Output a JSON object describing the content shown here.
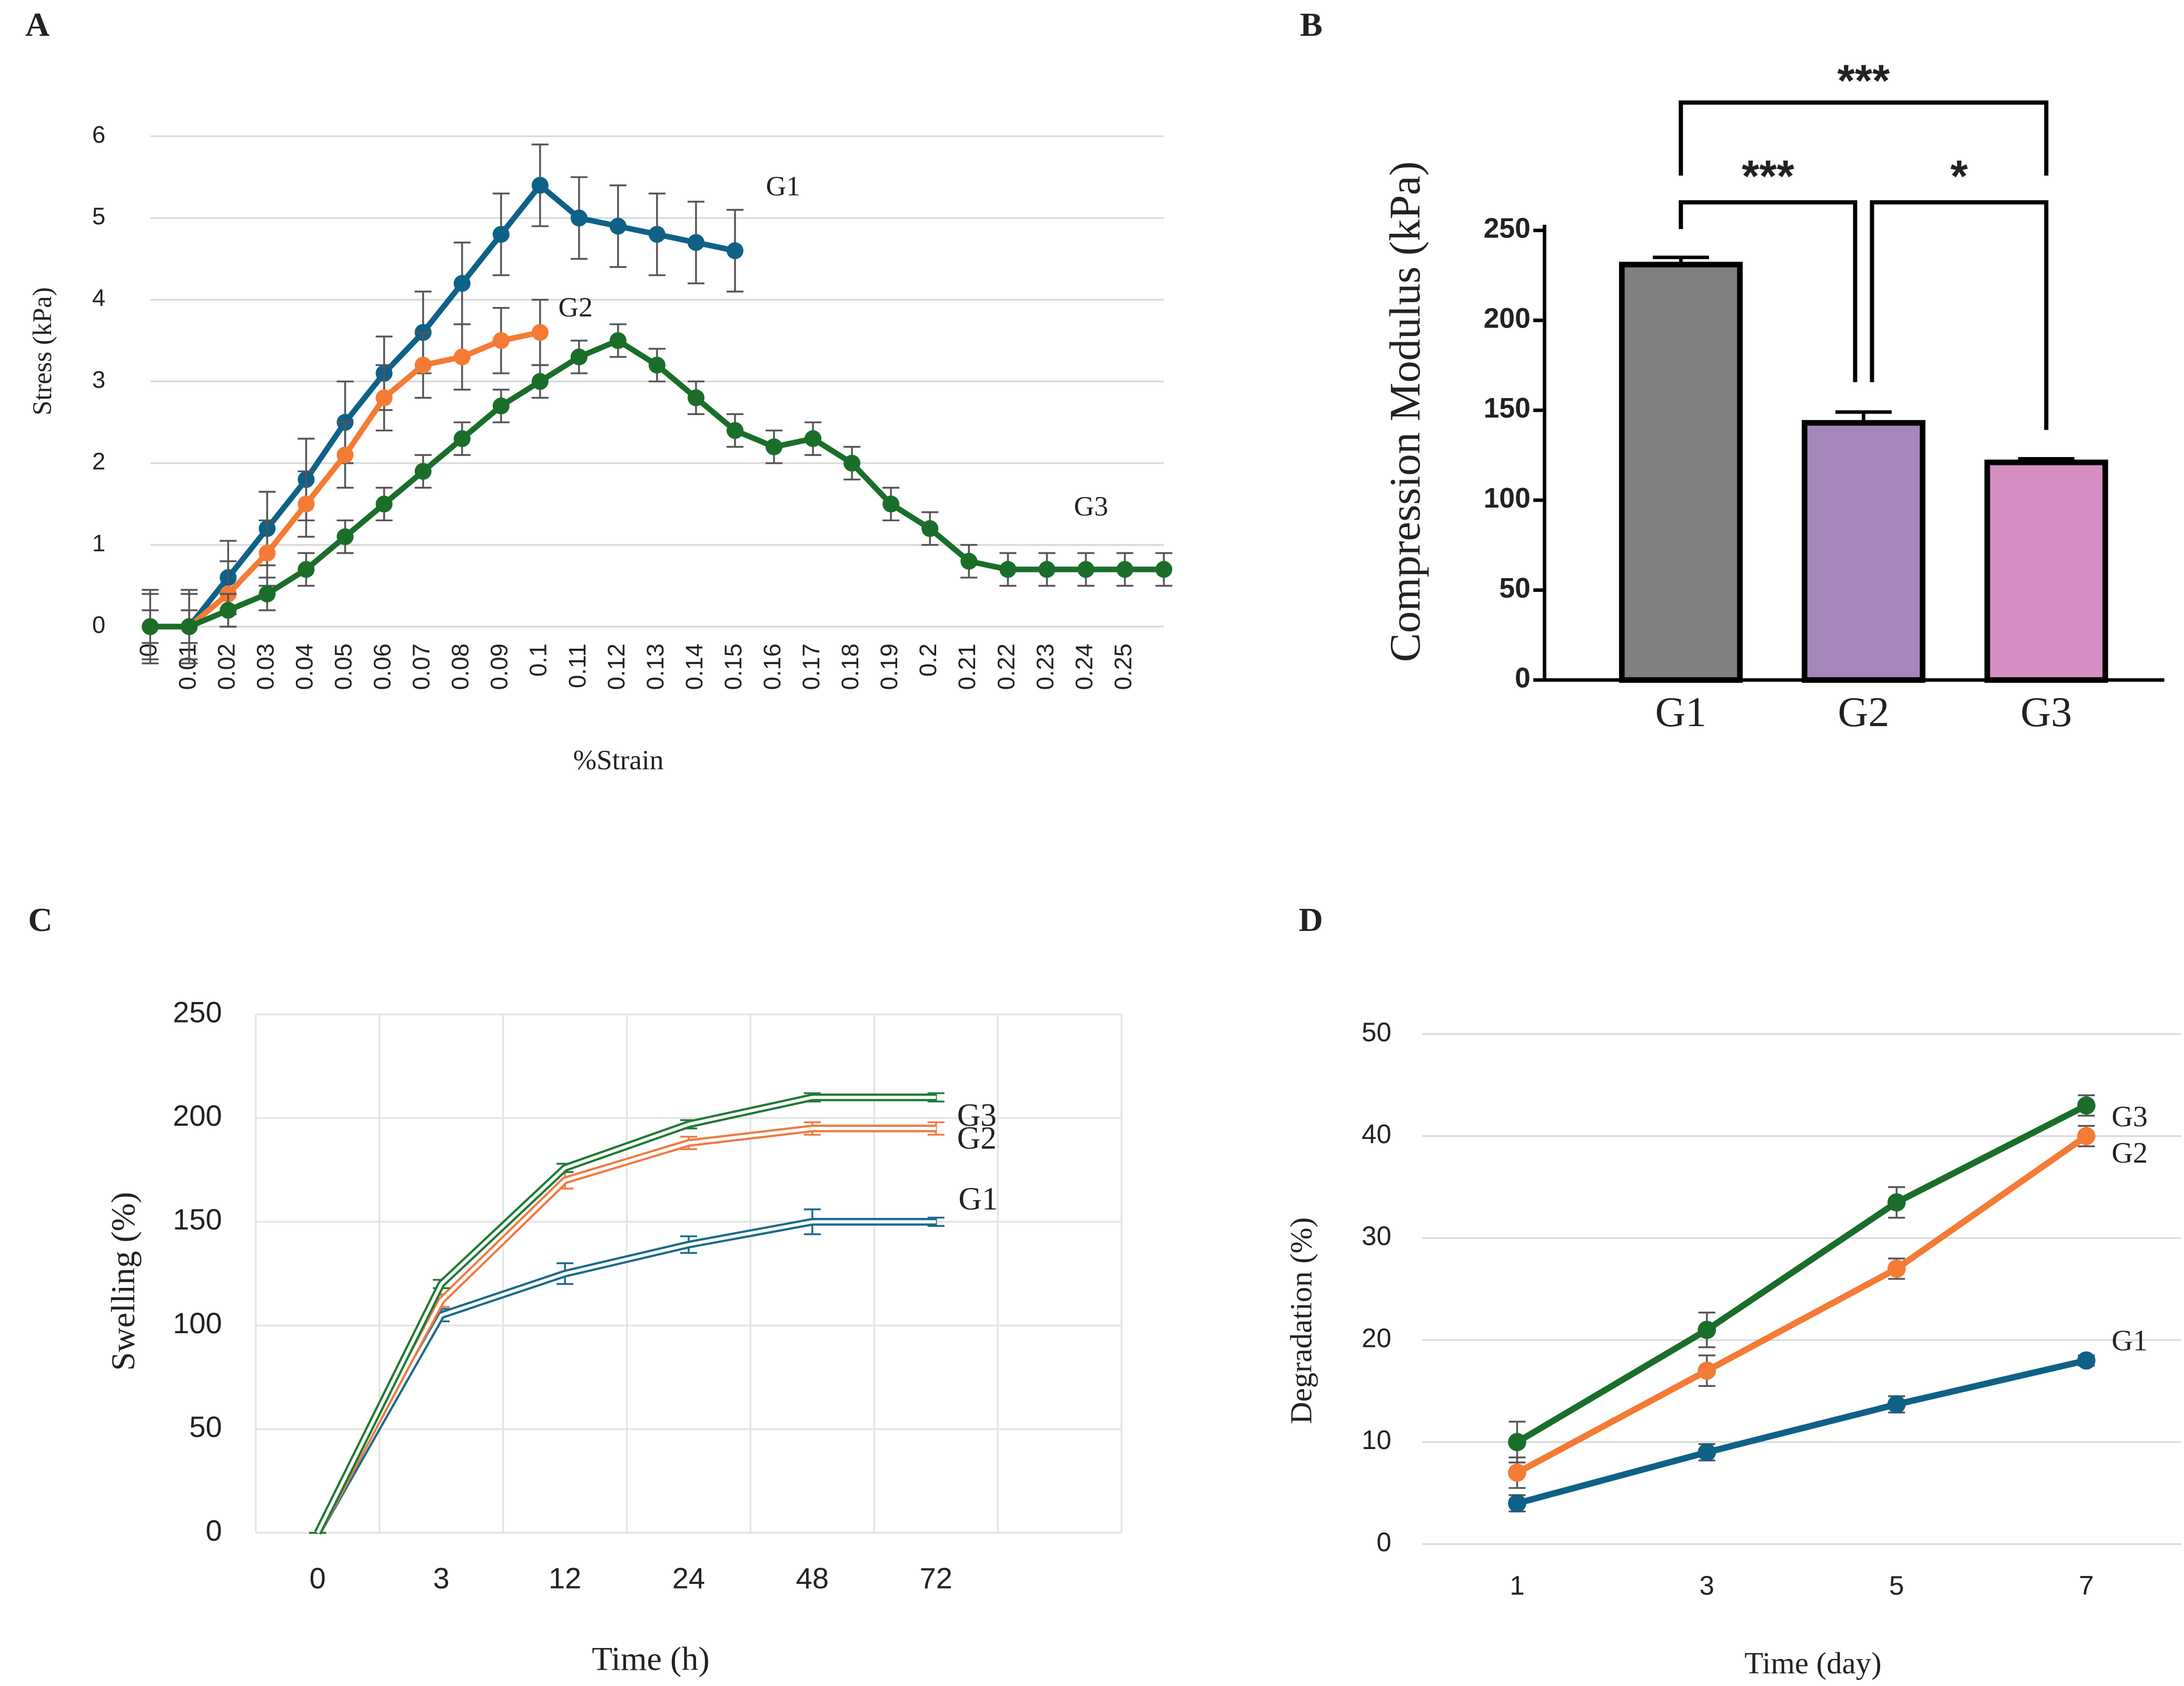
{
  "chart_data": [
    {
      "label": "A",
      "type": "line",
      "x_label": "%Strain",
      "y_label": "Stress (kPa)",
      "categories": [
        "0",
        "0.01",
        "0.02",
        "0.03",
        "0.04",
        "0.05",
        "0.06",
        "0.07",
        "0.08",
        "0.09",
        "0.1",
        "0.11",
        "0.12",
        "0.13",
        "0.14",
        "0.15",
        "0.16",
        "0.17",
        "0.18",
        "0.19",
        "0.2",
        "0.21",
        "0.22",
        "0.23",
        "0.24",
        "0.25",
        null
      ],
      "ylim": [
        0,
        6
      ],
      "yticks": [
        0,
        1,
        2,
        3,
        4,
        5,
        6
      ],
      "grid": true,
      "series": [
        {
          "name": "G1",
          "color": "#0f6188",
          "values": [
            0,
            0,
            0.6,
            1.2,
            1.8,
            2.5,
            3.1,
            3.6,
            4.2,
            4.8,
            5.4,
            5.0,
            4.9,
            4.8,
            4.7,
            4.6,
            null,
            null,
            null,
            null,
            null,
            null,
            null,
            null,
            null,
            null,
            null
          ],
          "errors": [
            0.45,
            0.45,
            0.45,
            0.45,
            0.5,
            0.5,
            0.45,
            0.5,
            0.5,
            0.5,
            0.5,
            0.5,
            0.5,
            0.5,
            0.5,
            0.5,
            null,
            null,
            null,
            null,
            null,
            null,
            null,
            null,
            null,
            null,
            null
          ]
        },
        {
          "name": "G2",
          "color": "#f47b35",
          "values": [
            0,
            0,
            0.4,
            0.9,
            1.5,
            2.1,
            2.8,
            3.2,
            3.3,
            3.5,
            3.6,
            null,
            null,
            null,
            null,
            null,
            null,
            null,
            null,
            null,
            null,
            null,
            null,
            null,
            null,
            null,
            null
          ],
          "errors": [
            0.4,
            0.4,
            0.4,
            0.4,
            0.4,
            0.4,
            0.4,
            0.4,
            0.4,
            0.4,
            0.4,
            null,
            null,
            null,
            null,
            null,
            null,
            null,
            null,
            null,
            null,
            null,
            null,
            null,
            null,
            null,
            null
          ]
        },
        {
          "name": "G3",
          "color": "#1a6e2a",
          "values": [
            0,
            0,
            0.2,
            0.4,
            0.7,
            1.1,
            1.5,
            1.9,
            2.3,
            2.7,
            3.0,
            3.3,
            3.5,
            3.2,
            2.8,
            2.4,
            2.2,
            2.3,
            2.0,
            1.5,
            1.2,
            0.8,
            0.7,
            0.7,
            0.7,
            0.7,
            0.7
          ],
          "errors": [
            0.2,
            0.2,
            0.2,
            0.2,
            0.2,
            0.2,
            0.2,
            0.2,
            0.2,
            0.2,
            0.2,
            0.2,
            0.2,
            0.2,
            0.2,
            0.2,
            0.2,
            0.2,
            0.2,
            0.2,
            0.2,
            0.2,
            0.2,
            0.2,
            0.2,
            0.2,
            0.2
          ]
        }
      ]
    },
    {
      "label": "B",
      "type": "bar",
      "y_label": "Compression Modulus (kPa)",
      "categories": [
        "G1",
        "G2",
        "G3"
      ],
      "values": [
        231,
        143,
        121
      ],
      "errors": [
        4,
        6,
        2
      ],
      "colors": [
        "#808080",
        "#a387bb",
        "#d68fc3"
      ],
      "ylim": [
        0,
        250
      ],
      "yticks": [
        0,
        50,
        100,
        150,
        200,
        250
      ],
      "annotations": [
        {
          "text": "***",
          "groups": [
            "G1",
            "G3"
          ]
        },
        {
          "text": "***",
          "groups": [
            "G1",
            "G2"
          ]
        },
        {
          "text": "*",
          "groups": [
            "G2",
            "G3"
          ]
        }
      ]
    },
    {
      "label": "C",
      "type": "line",
      "x_label": "Time (h)",
      "y_label": "Swelling (%)",
      "categories": [
        "0",
        "3",
        "12",
        "24",
        "48",
        "72",
        null
      ],
      "ylim": [
        0,
        250
      ],
      "yticks": [
        0,
        50,
        100,
        150,
        200,
        250
      ],
      "grid": true,
      "series": [
        {
          "name": "G1",
          "color": "#1a6b8a",
          "values": [
            0,
            105,
            125,
            139,
            150,
            150,
            null
          ],
          "errors": [
            0,
            3,
            5,
            4,
            6,
            2,
            null
          ]
        },
        {
          "name": "G2",
          "color": "#ef7b45",
          "values": [
            0,
            112,
            170,
            188,
            195,
            195,
            null
          ],
          "errors": [
            0,
            3,
            4,
            3,
            3,
            3,
            null
          ]
        },
        {
          "name": "G3",
          "color": "#1f7a35",
          "values": [
            0,
            120,
            176,
            197,
            210,
            210,
            null
          ],
          "errors": [
            0,
            2,
            2,
            2,
            2,
            2,
            null
          ]
        }
      ]
    },
    {
      "label": "D",
      "type": "line",
      "x_label": "Time (day)",
      "y_label": "Degradation (%)",
      "categories": [
        "1",
        "3",
        "5",
        "7"
      ],
      "ylim": [
        0,
        50
      ],
      "yticks": [
        0,
        10,
        20,
        30,
        40,
        50
      ],
      "grid": true,
      "series": [
        {
          "name": "G1",
          "color": "#0f6188",
          "values": [
            4,
            9,
            13.7,
            18
          ],
          "errors": [
            0.8,
            0.8,
            0.8,
            0.5
          ]
        },
        {
          "name": "G2",
          "color": "#f47b35",
          "values": [
            7,
            17,
            27,
            40
          ],
          "errors": [
            1.5,
            1.5,
            1,
            1
          ]
        },
        {
          "name": "G3",
          "color": "#1a6e2a",
          "values": [
            10,
            21,
            33.5,
            43
          ],
          "errors": [
            2,
            1.7,
            1.5,
            1
          ]
        }
      ]
    }
  ]
}
